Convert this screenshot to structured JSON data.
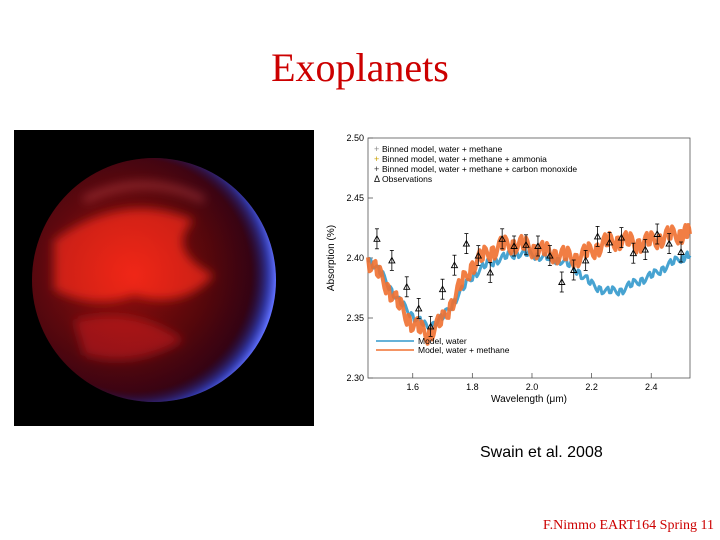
{
  "slide": {
    "title": "Exoplanets",
    "citation": "Swain et al. 2008",
    "footer": "F.Nimmo EART164 Spring 11"
  },
  "colors": {
    "title": "#cc0000",
    "water": "#3399cc",
    "methane": "#f07030",
    "observation": "#000000"
  },
  "chart_data": {
    "type": "line",
    "xlabel": "Wavelength (μm)",
    "ylabel": "Absorption (%)",
    "xlim": [
      1.45,
      2.53
    ],
    "ylim": [
      2.3,
      2.5
    ],
    "xticks": [
      1.6,
      1.8,
      2.0,
      2.2,
      2.4
    ],
    "yticks": [
      2.3,
      2.35,
      2.4,
      2.45,
      2.5
    ],
    "legend_top": [
      {
        "symbol": "+",
        "label": "Binned model, water + methane",
        "color": "#888888"
      },
      {
        "symbol": "+",
        "label": "Binned model, water + methane + ammonia",
        "color": "#c8a000"
      },
      {
        "symbol": "+",
        "label": "Binned model, water + methane + carbon monoxide",
        "color": "#333333"
      },
      {
        "symbol": "Δ",
        "label": "Observations",
        "color": "#000000"
      }
    ],
    "legend_bottom": [
      {
        "label": "Model, water",
        "color": "#3399cc"
      },
      {
        "label": "Model, water + methane",
        "color": "#f07030"
      }
    ],
    "series": [
      {
        "name": "Model, water",
        "x": [
          1.45,
          1.5,
          1.55,
          1.6,
          1.65,
          1.7,
          1.75,
          1.8,
          1.85,
          1.9,
          1.95,
          2.0,
          2.05,
          2.1,
          2.15,
          2.2,
          2.25,
          2.3,
          2.35,
          2.4,
          2.45,
          2.5,
          2.53
        ],
        "y": [
          2.4,
          2.385,
          2.365,
          2.352,
          2.342,
          2.35,
          2.368,
          2.385,
          2.395,
          2.4,
          2.404,
          2.403,
          2.4,
          2.398,
          2.39,
          2.378,
          2.372,
          2.373,
          2.38,
          2.385,
          2.393,
          2.4,
          2.402
        ]
      },
      {
        "name": "Model, water + methane",
        "x": [
          1.45,
          1.5,
          1.55,
          1.6,
          1.65,
          1.7,
          1.75,
          1.8,
          1.85,
          1.9,
          1.95,
          2.0,
          2.05,
          2.1,
          2.15,
          2.2,
          2.25,
          2.3,
          2.35,
          2.4,
          2.45,
          2.5,
          2.53
        ],
        "y": [
          2.398,
          2.382,
          2.362,
          2.345,
          2.336,
          2.348,
          2.372,
          2.394,
          2.404,
          2.41,
          2.412,
          2.408,
          2.405,
          2.402,
          2.4,
          2.406,
          2.413,
          2.415,
          2.412,
          2.414,
          2.418,
          2.42,
          2.42
        ]
      }
    ],
    "observations": {
      "x": [
        1.48,
        1.53,
        1.58,
        1.62,
        1.66,
        1.7,
        1.74,
        1.78,
        1.82,
        1.86,
        1.9,
        1.94,
        1.98,
        2.02,
        2.06,
        2.1,
        2.14,
        2.18,
        2.22,
        2.26,
        2.3,
        2.34,
        2.38,
        2.42,
        2.46,
        2.5
      ],
      "y": [
        2.416,
        2.398,
        2.376,
        2.358,
        2.343,
        2.374,
        2.394,
        2.412,
        2.402,
        2.388,
        2.416,
        2.41,
        2.411,
        2.41,
        2.402,
        2.38,
        2.39,
        2.398,
        2.418,
        2.413,
        2.417,
        2.404,
        2.407,
        2.42,
        2.412,
        2.405
      ]
    }
  }
}
